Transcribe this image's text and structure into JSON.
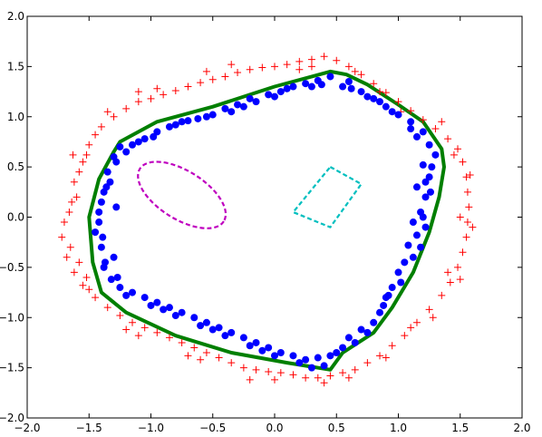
{
  "chart_data": {
    "type": "scatter",
    "title": "",
    "xlabel": "",
    "ylabel": "",
    "xlim": [
      -2.0,
      2.0
    ],
    "ylim": [
      -2.0,
      2.0
    ],
    "x_ticks": [
      "−2.0",
      "−1.5",
      "−1.0",
      "−0.5",
      "0.0",
      "0.5",
      "1.0",
      "1.5",
      "2.0"
    ],
    "y_ticks": [
      "−2.0",
      "−1.5",
      "−1.0",
      "−0.5",
      "0.0",
      "0.5",
      "1.0",
      "1.5",
      "2.0"
    ],
    "grid": false,
    "legend": "none",
    "colors": {
      "outer_points": "#ff0000",
      "inner_points": "#0000ff",
      "boundary": "#007f00",
      "ellipse": "#bf00bf",
      "quad": "#00bfbf"
    },
    "series": [
      {
        "marker": "plus",
        "color": "#ff0000",
        "points": [
          [
            -1.72,
            -0.2
          ],
          [
            -1.66,
            0.05
          ],
          [
            -1.62,
            0.35
          ],
          [
            -1.55,
            0.55
          ],
          [
            -1.5,
            0.72
          ],
          [
            -1.4,
            0.9
          ],
          [
            -1.3,
            1.0
          ],
          [
            -1.2,
            1.08
          ],
          [
            -1.1,
            1.15
          ],
          [
            -1.0,
            1.18
          ],
          [
            -0.9,
            1.22
          ],
          [
            -0.8,
            1.26
          ],
          [
            -0.7,
            1.3
          ],
          [
            -0.6,
            1.34
          ],
          [
            -0.5,
            1.37
          ],
          [
            -0.4,
            1.4
          ],
          [
            -0.3,
            1.44
          ],
          [
            -0.2,
            1.47
          ],
          [
            -0.1,
            1.49
          ],
          [
            0.0,
            1.5
          ],
          [
            0.1,
            1.52
          ],
          [
            0.2,
            1.55
          ],
          [
            0.3,
            1.57
          ],
          [
            0.4,
            1.6
          ],
          [
            0.5,
            1.56
          ],
          [
            0.6,
            1.5
          ],
          [
            0.7,
            1.42
          ],
          [
            0.8,
            1.33
          ],
          [
            0.9,
            1.24
          ],
          [
            1.0,
            1.15
          ],
          [
            1.1,
            1.06
          ],
          [
            1.2,
            0.97
          ],
          [
            1.3,
            0.88
          ],
          [
            1.4,
            0.78
          ],
          [
            1.48,
            0.68
          ],
          [
            1.52,
            0.55
          ],
          [
            1.55,
            0.4
          ],
          [
            1.56,
            0.25
          ],
          [
            1.57,
            0.1
          ],
          [
            1.56,
            -0.05
          ],
          [
            1.55,
            -0.2
          ],
          [
            1.52,
            -0.35
          ],
          [
            1.48,
            -0.5
          ],
          [
            1.42,
            -0.65
          ],
          [
            1.35,
            -0.78
          ],
          [
            1.25,
            -0.92
          ],
          [
            1.15,
            -1.05
          ],
          [
            1.05,
            -1.18
          ],
          [
            0.95,
            -1.28
          ],
          [
            0.85,
            -1.38
          ],
          [
            0.75,
            -1.45
          ],
          [
            0.65,
            -1.52
          ],
          [
            0.55,
            -1.55
          ],
          [
            0.45,
            -1.58
          ],
          [
            0.35,
            -1.6
          ],
          [
            0.25,
            -1.6
          ],
          [
            0.15,
            -1.57
          ],
          [
            0.05,
            -1.55
          ],
          [
            -0.05,
            -1.54
          ],
          [
            -0.15,
            -1.52
          ],
          [
            -0.25,
            -1.5
          ],
          [
            -0.35,
            -1.45
          ],
          [
            -0.45,
            -1.4
          ],
          [
            -0.55,
            -1.35
          ],
          [
            -0.65,
            -1.3
          ],
          [
            -0.75,
            -1.25
          ],
          [
            -0.85,
            -1.2
          ],
          [
            -0.95,
            -1.15
          ],
          [
            -1.05,
            -1.1
          ],
          [
            -1.15,
            -1.05
          ],
          [
            -1.25,
            -0.98
          ],
          [
            -1.35,
            -0.9
          ],
          [
            -1.45,
            -0.8
          ],
          [
            -1.55,
            -0.68
          ],
          [
            -1.62,
            -0.55
          ],
          [
            -1.68,
            -0.4
          ],
          [
            -1.65,
            -0.3
          ],
          [
            -1.58,
            -0.45
          ],
          [
            -1.6,
            0.2
          ],
          [
            -1.58,
            0.45
          ],
          [
            -1.45,
            0.82
          ],
          [
            -1.1,
            1.25
          ],
          [
            -0.55,
            1.45
          ],
          [
            0.2,
            1.47
          ],
          [
            0.65,
            1.45
          ],
          [
            1.02,
            1.05
          ],
          [
            1.45,
            0.62
          ],
          [
            1.5,
            0.0
          ],
          [
            1.4,
            -0.55
          ],
          [
            1.1,
            -1.1
          ],
          [
            0.6,
            -1.6
          ],
          [
            0.0,
            -1.62
          ],
          [
            -0.6,
            -1.42
          ],
          [
            -1.1,
            -1.18
          ],
          [
            -1.5,
            -0.72
          ],
          [
            -1.63,
            0.62
          ],
          [
            -1.35,
            1.05
          ],
          [
            -0.95,
            1.28
          ],
          [
            -0.35,
            1.52
          ],
          [
            0.3,
            1.5
          ],
          [
            0.85,
            1.25
          ],
          [
            1.35,
            0.95
          ],
          [
            1.58,
            0.42
          ],
          [
            1.6,
            -0.1
          ],
          [
            1.5,
            -0.62
          ],
          [
            1.28,
            -1.0
          ],
          [
            0.9,
            -1.4
          ],
          [
            0.4,
            -1.65
          ],
          [
            -0.2,
            -1.62
          ],
          [
            -0.7,
            -1.38
          ],
          [
            -1.2,
            -1.12
          ],
          [
            -1.52,
            -0.6
          ],
          [
            -1.7,
            -0.05
          ],
          [
            -1.64,
            0.15
          ],
          [
            -1.52,
            0.62
          ]
        ]
      },
      {
        "marker": "circle",
        "color": "#0000ff",
        "points": [
          [
            -1.45,
            -0.15
          ],
          [
            -1.42,
            0.05
          ],
          [
            -1.38,
            0.25
          ],
          [
            -1.4,
            -0.3
          ],
          [
            -1.35,
            0.45
          ],
          [
            -1.3,
            0.6
          ],
          [
            -1.25,
            0.7
          ],
          [
            -1.38,
            -0.5
          ],
          [
            -1.32,
            -0.62
          ],
          [
            -1.3,
            -0.4
          ],
          [
            -1.28,
            0.1
          ],
          [
            -1.33,
            0.35
          ],
          [
            -1.15,
            0.72
          ],
          [
            -1.05,
            0.78
          ],
          [
            -0.95,
            0.85
          ],
          [
            -0.85,
            0.9
          ],
          [
            -0.75,
            0.95
          ],
          [
            -0.62,
            0.98
          ],
          [
            -0.55,
            1.0
          ],
          [
            -0.4,
            1.08
          ],
          [
            -0.3,
            1.12
          ],
          [
            -0.2,
            1.18
          ],
          [
            -0.05,
            1.22
          ],
          [
            0.05,
            1.25
          ],
          [
            0.15,
            1.3
          ],
          [
            0.25,
            1.33
          ],
          [
            0.35,
            1.36
          ],
          [
            0.45,
            1.4
          ],
          [
            0.6,
            1.35
          ],
          [
            0.7,
            1.25
          ],
          [
            0.8,
            1.18
          ],
          [
            0.9,
            1.1
          ],
          [
            1.0,
            1.02
          ],
          [
            1.1,
            0.95
          ],
          [
            1.2,
            0.85
          ],
          [
            1.25,
            0.72
          ],
          [
            1.3,
            0.62
          ],
          [
            1.2,
            0.52
          ],
          [
            1.25,
            0.4
          ],
          [
            1.15,
            0.3
          ],
          [
            1.22,
            0.2
          ],
          [
            1.18,
            0.05
          ],
          [
            1.12,
            -0.05
          ],
          [
            1.15,
            -0.18
          ],
          [
            1.08,
            -0.28
          ],
          [
            1.12,
            -0.4
          ],
          [
            1.0,
            -0.55
          ],
          [
            0.95,
            -0.7
          ],
          [
            0.9,
            -0.8
          ],
          [
            0.85,
            -0.95
          ],
          [
            0.8,
            -1.05
          ],
          [
            0.7,
            -1.12
          ],
          [
            0.6,
            -1.2
          ],
          [
            0.55,
            -1.3
          ],
          [
            0.45,
            -1.38
          ],
          [
            0.35,
            -1.4
          ],
          [
            0.25,
            -1.42
          ],
          [
            0.15,
            -1.38
          ],
          [
            0.05,
            -1.35
          ],
          [
            -0.05,
            -1.3
          ],
          [
            -0.15,
            -1.25
          ],
          [
            -0.25,
            -1.2
          ],
          [
            -0.35,
            -1.15
          ],
          [
            -0.45,
            -1.1
          ],
          [
            -0.55,
            -1.05
          ],
          [
            -0.65,
            -1.0
          ],
          [
            -0.75,
            -0.95
          ],
          [
            -0.85,
            -0.9
          ],
          [
            -0.95,
            -0.85
          ],
          [
            -1.05,
            -0.8
          ],
          [
            -1.15,
            -0.75
          ],
          [
            -1.25,
            -0.7
          ],
          [
            -1.2,
            -0.78
          ],
          [
            -1.0,
            -0.88
          ],
          [
            -0.8,
            -0.98
          ],
          [
            -0.6,
            -1.08
          ],
          [
            -0.4,
            -1.18
          ],
          [
            -0.2,
            -1.28
          ],
          [
            0.0,
            -1.38
          ],
          [
            0.2,
            -1.45
          ],
          [
            0.4,
            -1.48
          ],
          [
            0.65,
            -1.25
          ],
          [
            0.88,
            -0.88
          ],
          [
            1.02,
            -0.65
          ],
          [
            1.18,
            -0.3
          ],
          [
            1.22,
            -0.1
          ],
          [
            1.26,
            0.25
          ],
          [
            1.27,
            0.5
          ],
          [
            1.15,
            0.8
          ],
          [
            0.95,
            1.05
          ],
          [
            0.75,
            1.2
          ],
          [
            0.55,
            1.3
          ],
          [
            0.3,
            1.3
          ],
          [
            0.0,
            1.2
          ],
          [
            -0.25,
            1.1
          ],
          [
            -0.5,
            1.02
          ],
          [
            -0.8,
            0.92
          ],
          [
            -1.1,
            0.75
          ],
          [
            -1.28,
            0.55
          ],
          [
            -1.4,
            0.15
          ],
          [
            -1.42,
            -0.05
          ],
          [
            -1.37,
            -0.45
          ],
          [
            -1.27,
            -0.6
          ],
          [
            -0.9,
            -0.92
          ],
          [
            -0.5,
            -1.12
          ],
          [
            -0.1,
            -1.33
          ],
          [
            0.3,
            -1.5
          ],
          [
            0.5,
            -1.35
          ],
          [
            0.75,
            -1.15
          ],
          [
            0.92,
            -0.78
          ],
          [
            1.05,
            -0.45
          ],
          [
            1.2,
            0.0
          ],
          [
            1.22,
            0.35
          ],
          [
            1.1,
            0.88
          ],
          [
            0.85,
            1.15
          ],
          [
            0.62,
            1.28
          ],
          [
            0.38,
            1.32
          ],
          [
            0.1,
            1.28
          ],
          [
            -0.15,
            1.15
          ],
          [
            -0.35,
            1.05
          ],
          [
            -0.7,
            0.96
          ],
          [
            -0.98,
            0.8
          ],
          [
            -1.2,
            0.65
          ],
          [
            -1.36,
            0.3
          ],
          [
            -1.39,
            -0.2
          ]
        ]
      }
    ],
    "curves": [
      {
        "name_key": "outer-boundary",
        "color": "#007f00",
        "style": "solid",
        "closed": true,
        "points": [
          [
            -1.4,
            -0.75
          ],
          [
            -1.47,
            -0.45
          ],
          [
            -1.5,
            0.0
          ],
          [
            -1.42,
            0.38
          ],
          [
            -1.3,
            0.65
          ],
          [
            -1.25,
            0.75
          ],
          [
            -0.95,
            0.95
          ],
          [
            -0.5,
            1.1
          ],
          [
            0.0,
            1.3
          ],
          [
            0.45,
            1.45
          ],
          [
            0.58,
            1.42
          ],
          [
            0.75,
            1.32
          ],
          [
            1.0,
            1.12
          ],
          [
            1.2,
            0.95
          ],
          [
            1.35,
            0.68
          ],
          [
            1.37,
            0.5
          ],
          [
            1.33,
            0.2
          ],
          [
            1.25,
            -0.15
          ],
          [
            1.12,
            -0.55
          ],
          [
            0.95,
            -0.9
          ],
          [
            0.8,
            -1.15
          ],
          [
            0.55,
            -1.35
          ],
          [
            0.45,
            -1.52
          ],
          [
            0.1,
            -1.45
          ],
          [
            -0.35,
            -1.35
          ],
          [
            -0.8,
            -1.18
          ],
          [
            -1.2,
            -0.95
          ],
          [
            -1.4,
            -0.75
          ]
        ]
      },
      {
        "name_key": "inner-ellipse",
        "color": "#bf00bf",
        "style": "dashed",
        "closed": true,
        "ellipse": {
          "cx": -0.75,
          "cy": 0.22,
          "rx": 0.4,
          "ry": 0.24,
          "angle": -32
        }
      },
      {
        "name_key": "inner-quad",
        "color": "#00bfbf",
        "style": "dashed",
        "closed": true,
        "points": [
          [
            0.45,
            0.5
          ],
          [
            0.7,
            0.33
          ],
          [
            0.45,
            -0.1
          ],
          [
            0.15,
            0.05
          ],
          [
            0.45,
            0.5
          ]
        ]
      }
    ]
  }
}
